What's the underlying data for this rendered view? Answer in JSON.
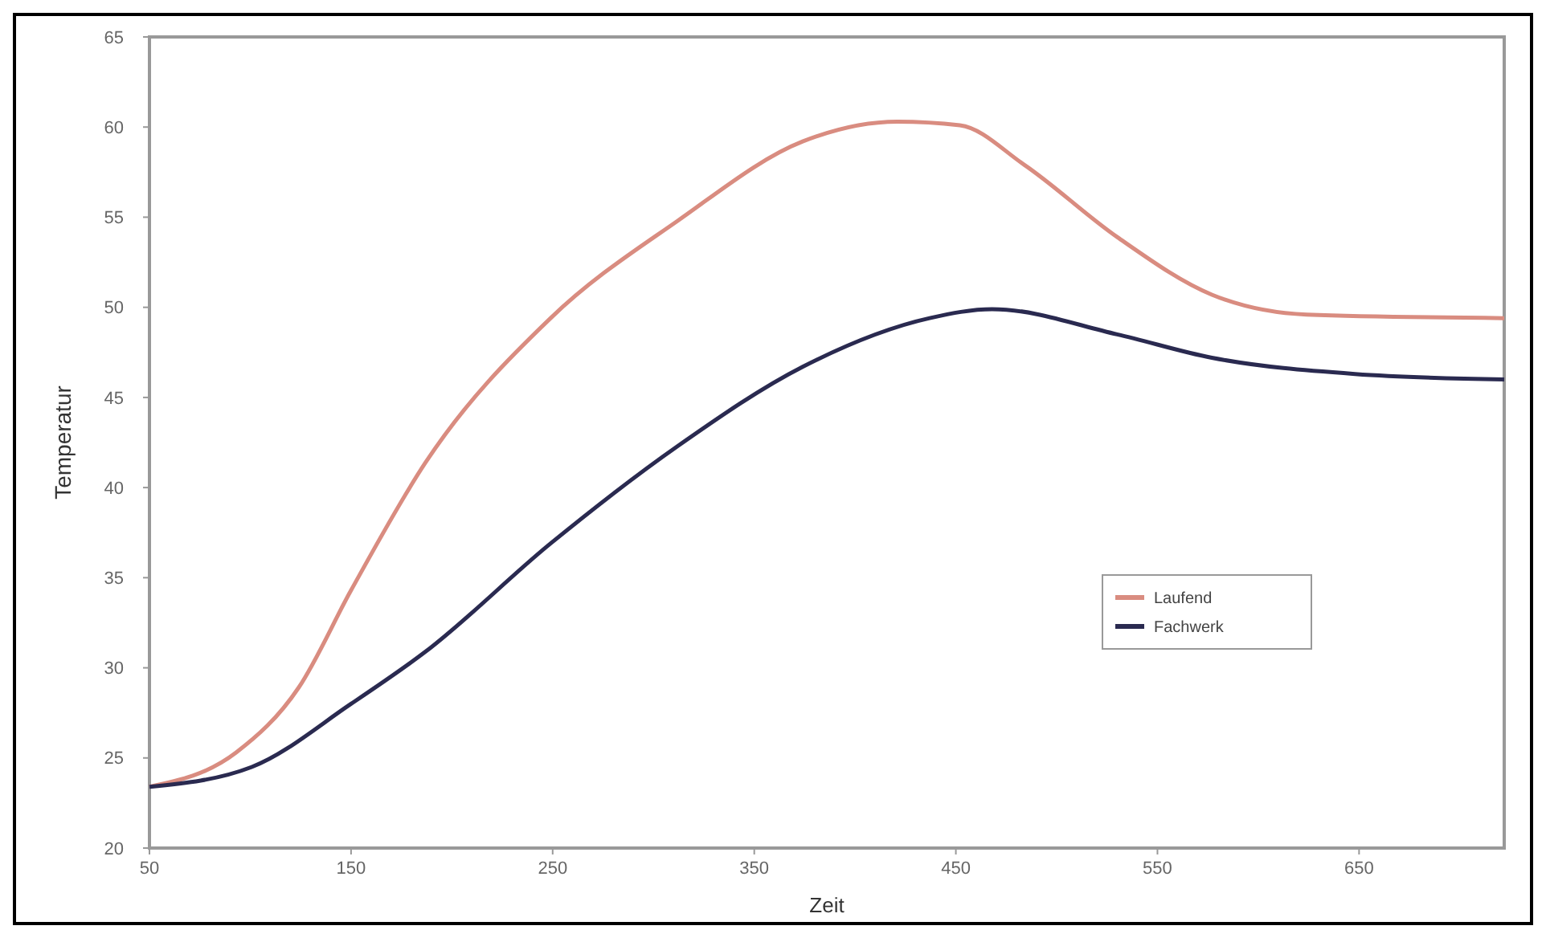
{
  "chart_data": {
    "type": "line",
    "xlabel": "Zeit",
    "ylabel": "Temperatur",
    "xlim": [
      50,
      722
    ],
    "xticks": [
      50,
      150,
      250,
      350,
      450,
      550,
      650
    ],
    "ylim": [
      20,
      65
    ],
    "yticks": [
      20,
      25,
      30,
      35,
      40,
      45,
      50,
      55,
      60,
      65
    ],
    "legend": "right",
    "grid": false,
    "marker": "none",
    "line_style": "solid",
    "series": [
      {
        "name": "Laufend",
        "color": "#d98c80",
        "x": [
          50,
          93,
          124,
          150,
          187,
          249,
          312,
          374,
          421,
          452,
          484,
          530,
          577,
          624,
          722
        ],
        "values": [
          23.4,
          25.3,
          28.9,
          34.3,
          41.4,
          49.4,
          54.8,
          59.2,
          60.3,
          60.1,
          57.9,
          53.9,
          50.7,
          49.6,
          49.4
        ]
      },
      {
        "name": "Fachwerk",
        "color": "#2a2a50",
        "x": [
          50,
          100.8,
          150,
          187,
          249,
          312,
          374,
          437,
          468,
          530,
          577,
          648,
          722
        ],
        "values": [
          23.4,
          24.5,
          28.0,
          30.9,
          36.9,
          42.3,
          46.7,
          49.4,
          49.9,
          48.5,
          47.2,
          46.3,
          46.0
        ]
      }
    ]
  }
}
